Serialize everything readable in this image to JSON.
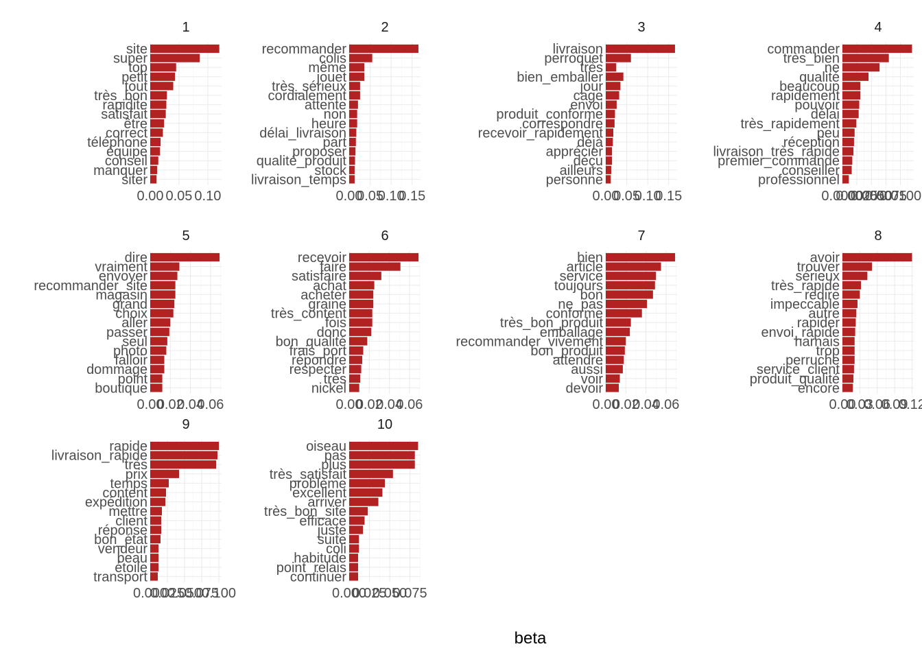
{
  "style": {
    "bar_color": "#b22222",
    "grid_color": "#ebebeb",
    "text_color": "#4d4d4d"
  },
  "chart_data": {
    "type": "bar",
    "orientation": "horizontal",
    "xlabel": "beta",
    "grid": true,
    "facets": [
      {
        "title": "1",
        "terms": [
          "site",
          "super",
          "top",
          "petit",
          "tout",
          "très_bon",
          "rapidite",
          "satisfait",
          "être",
          "correct",
          "téléphone",
          "équipe",
          "conseil",
          "manquer",
          "siter"
        ],
        "values": [
          0.12,
          0.086,
          0.045,
          0.043,
          0.04,
          0.029,
          0.028,
          0.027,
          0.024,
          0.022,
          0.018,
          0.017,
          0.014,
          0.012,
          0.011
        ],
        "xlim": [
          0,
          0.124
        ],
        "ticks": [
          0,
          0.05,
          0.1
        ],
        "tick_labels": [
          "0.00",
          "0.05",
          "0.10"
        ]
      },
      {
        "title": "2",
        "terms": [
          "recommander",
          "colis",
          "même",
          "jouet",
          "très_sérieux",
          "cordialement",
          "attente",
          "non",
          "heure",
          "délai_livraison",
          "part",
          "proposer",
          "qualité_produit",
          "stock",
          "livraison_temps"
        ],
        "values": [
          0.165,
          0.055,
          0.036,
          0.036,
          0.026,
          0.026,
          0.021,
          0.019,
          0.019,
          0.017,
          0.016,
          0.015,
          0.014,
          0.013,
          0.013
        ],
        "xlim": [
          0,
          0.17
        ],
        "ticks": [
          0,
          0.05,
          0.1,
          0.15
        ],
        "tick_labels": [
          "0.00",
          "0.05",
          "0.10",
          "0.15"
        ]
      },
      {
        "title": "3",
        "terms": [
          "livraison",
          "perroquet",
          "très",
          "bien_emballer",
          "jour",
          "cage",
          "envoi",
          "produit_conforme",
          "correspondre",
          "recevoir_rapidement",
          "déjà",
          "apprécier",
          "déçu",
          "ailleurs",
          "personne"
        ],
        "values": [
          0.165,
          0.06,
          0.025,
          0.042,
          0.035,
          0.032,
          0.026,
          0.022,
          0.021,
          0.018,
          0.017,
          0.015,
          0.015,
          0.013,
          0.012
        ],
        "xlim": [
          0,
          0.17
        ],
        "ticks": [
          0,
          0.05,
          0.1,
          0.15
        ],
        "tick_labels": [
          "0.00",
          "0.05",
          "0.10",
          "0.15"
        ]
      },
      {
        "title": "4",
        "terms": [
          "commander",
          "très_bien",
          "ne",
          "qualité",
          "beaucoup",
          "rapidement",
          "pouvoir",
          "délai",
          "très_rapidement",
          "peu",
          "réception",
          "livraison_très_rapide",
          "premier_commande",
          "conseiller",
          "professionnel"
        ],
        "values": [
          0.012,
          0.008,
          0.0064,
          0.0045,
          0.0031,
          0.0031,
          0.0029,
          0.0028,
          0.0024,
          0.0021,
          0.002,
          0.0019,
          0.0017,
          0.0016,
          0.0011
        ],
        "xlim": [
          0,
          0.0123
        ],
        "ticks": [
          0,
          0.0025,
          0.005,
          0.0075,
          0.01
        ],
        "tick_labels": [
          "0.0000",
          "0.0025",
          "0.0050",
          "0.0075",
          "0.0100"
        ]
      },
      {
        "title": "5",
        "terms": [
          "dire",
          "vraiment",
          "envoyer",
          "recommander_site",
          "magasin",
          "grand",
          "choix",
          "aller",
          "passer",
          "seul",
          "photo",
          "falloir",
          "dommage",
          "point",
          "boutique"
        ],
        "values": [
          0.069,
          0.029,
          0.027,
          0.025,
          0.025,
          0.024,
          0.023,
          0.02,
          0.019,
          0.017,
          0.016,
          0.014,
          0.014,
          0.012,
          0.012
        ],
        "xlim": [
          0,
          0.071
        ],
        "ticks": [
          0,
          0.02,
          0.04,
          0.06
        ],
        "tick_labels": [
          "0.00",
          "0.02",
          "0.04",
          "0.06"
        ]
      },
      {
        "title": "6",
        "terms": [
          "recevoir",
          "faire",
          "satisfaire",
          "achat",
          "acheter",
          "graine",
          "très_content",
          "fois",
          "donc",
          "bon_qualité",
          "frais_port",
          "répondre",
          "respecter",
          "très",
          "nickel"
        ],
        "values": [
          0.069,
          0.051,
          0.032,
          0.025,
          0.024,
          0.024,
          0.023,
          0.023,
          0.022,
          0.018,
          0.014,
          0.013,
          0.012,
          0.011,
          0.01
        ],
        "xlim": [
          0,
          0.071
        ],
        "ticks": [
          0,
          0.02,
          0.04,
          0.06
        ],
        "tick_labels": [
          "0.00",
          "0.02",
          "0.04",
          "0.06"
        ]
      },
      {
        "title": "7",
        "terms": [
          "bien",
          "article",
          "service",
          "toujours",
          "bon",
          "ne_pas",
          "conforme",
          "très_bon_produit",
          "emballage",
          "recommander_vivement",
          "bon_produit",
          "attendre",
          "aussi",
          "voir",
          "devoir"
        ],
        "values": [
          0.069,
          0.055,
          0.05,
          0.049,
          0.047,
          0.041,
          0.036,
          0.025,
          0.024,
          0.02,
          0.019,
          0.018,
          0.017,
          0.014,
          0.013
        ],
        "xlim": [
          0,
          0.071
        ],
        "ticks": [
          0,
          0.02,
          0.04,
          0.06
        ],
        "tick_labels": [
          "0.00",
          "0.02",
          "0.04",
          "0.06"
        ]
      },
      {
        "title": "8",
        "terms": [
          "avoir",
          "trouver",
          "sérieux",
          "très_rapide",
          "redire",
          "impeccable",
          "autre",
          "rapider",
          "envoi_rapide",
          "harnais",
          "trop",
          "perruche",
          "service_client",
          "produit_qualité",
          "encore"
        ],
        "values": [
          0.12,
          0.051,
          0.043,
          0.032,
          0.03,
          0.026,
          0.024,
          0.023,
          0.022,
          0.021,
          0.021,
          0.021,
          0.02,
          0.019,
          0.018
        ],
        "xlim": [
          0,
          0.123
        ],
        "ticks": [
          0,
          0.03,
          0.06,
          0.09,
          0.12
        ],
        "tick_labels": [
          "0.00",
          "0.03",
          "0.06",
          "0.09",
          "0.12"
        ]
      },
      {
        "title": "9",
        "terms": [
          "rapide",
          "livraison_rapide",
          "très",
          "prix",
          "temps",
          "content",
          "expédition",
          "mettre",
          "client",
          "réponse",
          "bon_état",
          "vendeur",
          "beau",
          "étoile",
          "transport"
        ],
        "values": [
          0.1,
          0.098,
          0.096,
          0.042,
          0.027,
          0.023,
          0.022,
          0.017,
          0.016,
          0.016,
          0.015,
          0.012,
          0.012,
          0.012,
          0.011
        ],
        "xlim": [
          0,
          0.104
        ],
        "ticks": [
          0,
          0.025,
          0.05,
          0.075,
          0.1
        ],
        "tick_labels": [
          "0.000",
          "0.025",
          "0.050",
          "0.075",
          "0.100"
        ]
      },
      {
        "title": "10",
        "terms": [
          "oiseau",
          "pas",
          "plus",
          "très_satisfait",
          "problème",
          "excellent",
          "arriver",
          "très_bon_site",
          "efficace",
          "juste",
          "suite",
          "coli",
          "habitude",
          "point_relais",
          "continuer"
        ],
        "values": [
          0.085,
          0.081,
          0.081,
          0.054,
          0.044,
          0.041,
          0.036,
          0.023,
          0.019,
          0.017,
          0.012,
          0.012,
          0.011,
          0.011,
          0.011
        ],
        "xlim": [
          0,
          0.088
        ],
        "ticks": [
          0,
          0.025,
          0.05,
          0.075
        ],
        "tick_labels": [
          "0.000",
          "0.025",
          "0.050",
          "0.075"
        ]
      }
    ]
  }
}
